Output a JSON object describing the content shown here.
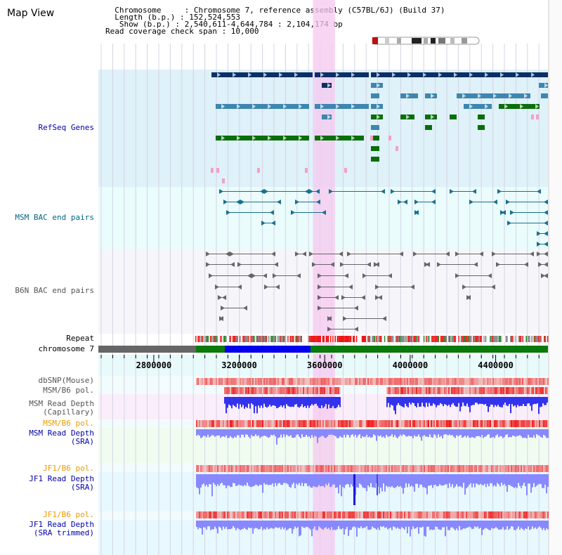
{
  "title": "Map View",
  "header": {
    "lines": [
      "  Chromosome     : Chromosome 7, reference assembly (C57BL/6J) (Build 37)",
      "  Length (b.p.) : 152,524,553",
      "   Show (b.p.) : 2,540,611-4,644,784 : 2,104,174 bp",
      "Read coverage check span : 10,000"
    ]
  },
  "tracks": {
    "refseq": {
      "label": "RefSeq Genes",
      "color": "#0000aa"
    },
    "msm_bac": {
      "label": "MSM BAC end pairs",
      "color": "#006688"
    },
    "b6n_bac": {
      "label": "B6N BAC end pairs",
      "color": "#555555"
    },
    "repeat": {
      "label": "Repeat"
    },
    "chromosome": {
      "label": "chromosome 7"
    },
    "dbsnp": {
      "label": "dbSNP(Mouse)"
    },
    "msm_b6_pol_cap": {
      "label": "MSM/B6 pol."
    },
    "msm_depth_cap": {
      "label1": "MSM Read Depth",
      "label2": "(Capillary)"
    },
    "msm_b6_pol_sra": {
      "label": "MSM/B6 pol."
    },
    "msm_depth_sra": {
      "label1": "MSM Read Depth",
      "label2": "(SRA)"
    },
    "jf1_b6_pol_sra": {
      "label": "JF1/B6 pol."
    },
    "jf1_depth_sra": {
      "label1": "JF1 Read Depth",
      "label2": "(SRA)"
    },
    "jf1_b6_pol_trim": {
      "label": "JF1/B6 pol."
    },
    "jf1_depth_trim": {
      "label1": "JF1 Read Depth",
      "label2": "(SRA trimmed)"
    }
  },
  "axis": {
    "ticks": [
      {
        "value": 2800000,
        "label": "2800000"
      },
      {
        "value": 3200000,
        "label": "3200000"
      },
      {
        "value": 3600000,
        "label": "3600000"
      },
      {
        "value": 4000000,
        "label": "4000000"
      },
      {
        "value": 4400000,
        "label": "4400000"
      }
    ],
    "range": [
      2540611,
      4644784
    ],
    "highlight": [
      3545000,
      3648000
    ]
  },
  "colors": {
    "refseq_dark": "#0b2f66",
    "refseq_mid": "#3d86b0",
    "refseq_green": "#0a6e0a",
    "refseq_pink": "#f4a0c8",
    "msm_line": "#1a6f8f",
    "b6n_line": "#666666",
    "highlight": "#f5c8ef",
    "depth_blue": "#3333ee",
    "depth_light": "#8888ff",
    "pol_red": "#ee3333",
    "chrom_gray": "#666666",
    "chrom_green": "#0a7a0a",
    "chrom_blue": "#0000ee"
  }
}
